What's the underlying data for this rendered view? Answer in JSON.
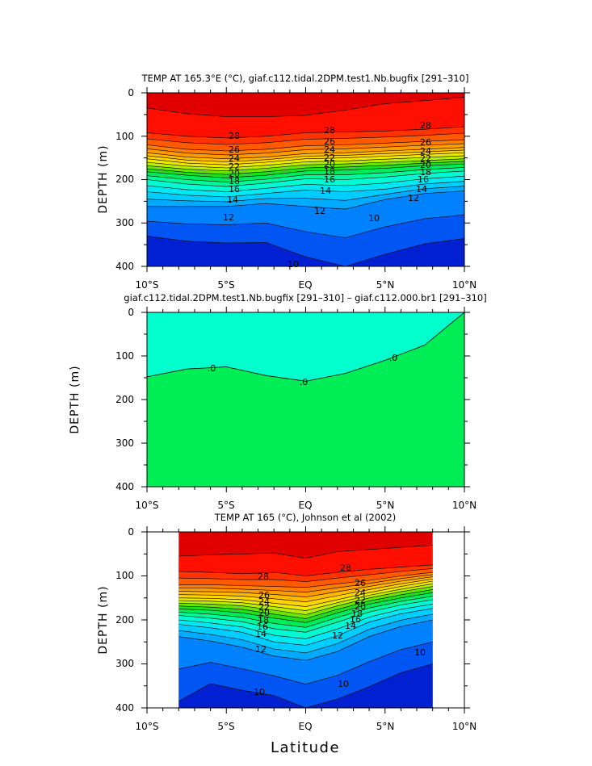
{
  "chart_data": [
    {
      "type": "contour",
      "title": "TEMP AT 165.3°E (°C), giaf.c112.tidal.2DPM.test1.Nb.bugfix [291–310]",
      "ylabel": "DEPTH (m)",
      "xlabel": "",
      "x_ticks": [
        "10°S",
        "5°S",
        "EQ",
        "5°N",
        "10°N"
      ],
      "y_ticks": [
        "0",
        "100",
        "200",
        "300",
        "400"
      ],
      "xlim": [
        -10,
        10
      ],
      "ylim": [
        0,
        400
      ],
      "y_inverted": true,
      "contour_labels": [
        "28",
        "26",
        "24",
        "22",
        "20",
        "18",
        "16",
        "14",
        "12",
        "28",
        "26",
        "24",
        "22",
        "20",
        "18",
        "16",
        "14",
        "12",
        "10",
        "28",
        "26",
        "24",
        "22",
        "20",
        "18",
        "16",
        "14",
        "12",
        "10"
      ],
      "levels": [
        10,
        11,
        12,
        13,
        14,
        15,
        16,
        17,
        18,
        19,
        20,
        21,
        22,
        23,
        24,
        25,
        26,
        27,
        28,
        29
      ],
      "isotherm_depths_m": {
        "x": [
          -10,
          -7.5,
          -5,
          -2.5,
          0,
          2.5,
          5,
          7.5,
          10
        ],
        "29": [
          35,
          48,
          55,
          55,
          52,
          40,
          25,
          18,
          10
        ],
        "28": [
          92,
          100,
          104,
          100,
          92,
          90,
          88,
          84,
          78
        ],
        "26": [
          120,
          130,
          134,
          130,
          122,
          120,
          116,
          112,
          108
        ],
        "24": [
          138,
          148,
          152,
          148,
          140,
          138,
          134,
          130,
          126
        ],
        "22": [
          152,
          162,
          166,
          160,
          152,
          150,
          146,
          142,
          138
        ],
        "20": [
          168,
          176,
          180,
          174,
          166,
          164,
          160,
          156,
          152
        ],
        "18": [
          182,
          190,
          196,
          190,
          180,
          178,
          174,
          168,
          164
        ],
        "16": [
          200,
          210,
          216,
          208,
          198,
          200,
          194,
          186,
          180
        ],
        "14": [
          228,
          236,
          240,
          232,
          224,
          228,
          222,
          210,
          204
        ],
        "12": [
          262,
          262,
          262,
          255,
          262,
          268,
          246,
          232,
          226
        ],
        "10": [
          330,
          342,
          346,
          345,
          378,
          400,
          372,
          348,
          336
        ]
      }
    },
    {
      "type": "contour",
      "title": "giaf.c112.tidal.2DPM.test1.Nb.bugfix [291–310] – giaf.c112.000.br1 [291–310]",
      "ylabel": "DEPTH (m)",
      "xlabel": "",
      "x_ticks": [
        "10°S",
        "5°S",
        "EQ",
        "5°N",
        "10°N"
      ],
      "y_ticks": [
        "0",
        "100",
        "200",
        "300",
        "400"
      ],
      "xlim": [
        -10,
        10
      ],
      "ylim": [
        0,
        400
      ],
      "y_inverted": true,
      "contour_labels": [
        ".0",
        ".0",
        ".0"
      ],
      "zero_contour": {
        "x": [
          -10,
          -7.5,
          -5,
          -2.5,
          0,
          2.5,
          5,
          7.5,
          9.5,
          10
        ],
        "depth": [
          148,
          130,
          125,
          145,
          158,
          140,
          110,
          75,
          15,
          0
        ]
      },
      "colors": {
        "positive": "#00FFCC",
        "negative": "#00EE55"
      }
    },
    {
      "type": "contour",
      "title": "TEMP AT 165 (°C), Johnson et al (2002)",
      "ylabel": "DEPTH (m)",
      "xlabel": "Latitude",
      "x_ticks": [
        "10°S",
        "5°S",
        "EQ",
        "5°N",
        "10°N"
      ],
      "y_ticks": [
        "0",
        "100",
        "200",
        "300",
        "400"
      ],
      "xlim": [
        -10,
        10
      ],
      "ylim": [
        0,
        400
      ],
      "data_xrange": [
        -8,
        8
      ],
      "y_inverted": true,
      "contour_labels": [
        "28",
        "26",
        "24",
        "22",
        "20",
        "18",
        "16",
        "14",
        "12",
        "28",
        "26",
        "24",
        "22",
        "20",
        "18",
        "16",
        "14",
        "12",
        "10",
        "10",
        "10"
      ],
      "isotherm_depths_m": {
        "x": [
          -8,
          -6,
          -4,
          -2,
          0,
          2,
          4,
          6,
          8
        ],
        "29": [
          55,
          52,
          50,
          48,
          60,
          45,
          40,
          35,
          30
        ],
        "28": [
          90,
          92,
          95,
          92,
          100,
          92,
          85,
          80,
          75
        ],
        "26": [
          120,
          120,
          122,
          124,
          126,
          118,
          110,
          100,
          92
        ],
        "24": [
          135,
          136,
          138,
          142,
          148,
          136,
          124,
          112,
          102
        ],
        "22": [
          150,
          151,
          154,
          162,
          170,
          154,
          138,
          124,
          112
        ],
        "20": [
          162,
          164,
          168,
          178,
          188,
          168,
          150,
          136,
          124
        ],
        "18": [
          175,
          178,
          184,
          196,
          206,
          184,
          164,
          150,
          138
        ],
        "16": [
          190,
          196,
          204,
          220,
          228,
          205,
          182,
          166,
          154
        ],
        "14": [
          210,
          218,
          228,
          250,
          258,
          236,
          205,
          186,
          174
        ],
        "12": [
          238,
          248,
          262,
          282,
          292,
          272,
          238,
          215,
          200
        ],
        "10": [
          385,
          345,
          360,
          372,
          400,
          380,
          352,
          320,
          300
        ]
      }
    }
  ]
}
